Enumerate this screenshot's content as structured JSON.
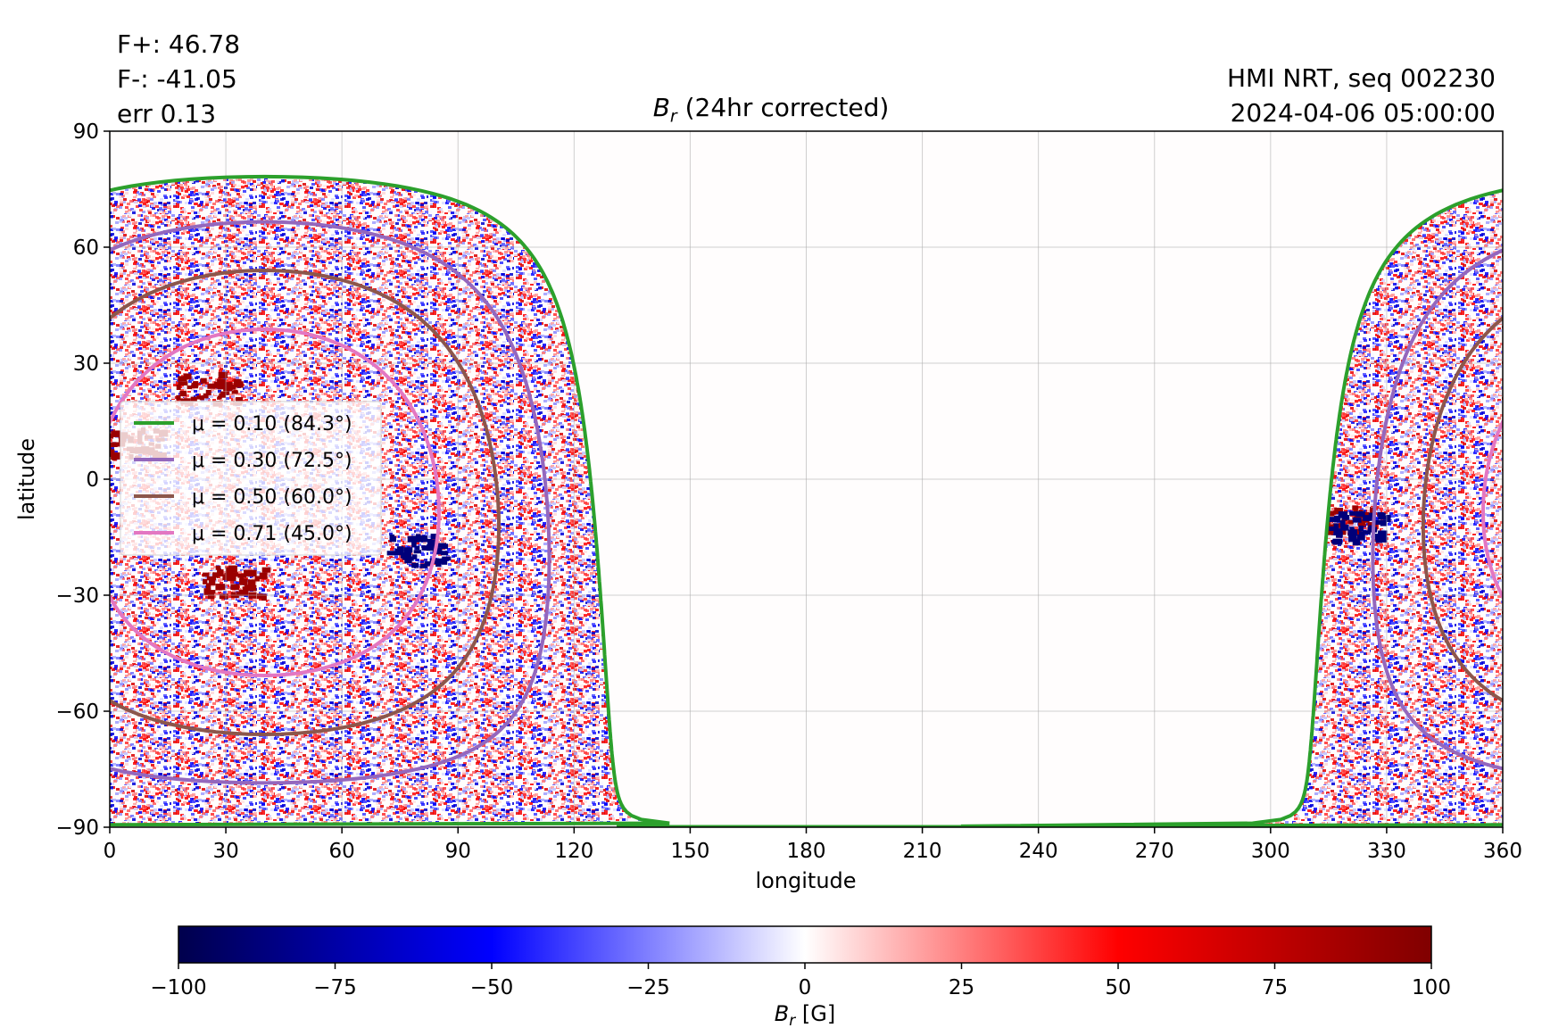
{
  "header": {
    "stats": [
      "F+: 46.78",
      "F-: -41.05",
      "err 0.13"
    ],
    "source_line1": "HMI NRT, seq 002230",
    "source_line2": "2024-04-06 05:00:00",
    "title_main": "B",
    "title_sub": "r",
    "title_rest": " (24hr corrected)"
  },
  "chart_data": {
    "type": "heatmap",
    "xlabel": "longitude",
    "ylabel": "latitude",
    "xlim": [
      0,
      360
    ],
    "ylim": [
      -90,
      90
    ],
    "xticks": [
      "0",
      "30",
      "60",
      "90",
      "120",
      "150",
      "180",
      "210",
      "240",
      "270",
      "300",
      "330",
      "360"
    ],
    "yticks": [
      "90",
      "60",
      "30",
      "0",
      "−30",
      "−60",
      "−90"
    ],
    "grid": true,
    "disk_center_longitude": 40,
    "disk_center_latitude": -6,
    "no_data_longitude_range": [
      131,
      312
    ],
    "contours": [
      {
        "label": "μ = 0.10 (84.3°)",
        "mu": 0.1,
        "angle_deg": 84.3,
        "color": "#2ca02c"
      },
      {
        "label": "μ = 0.30 (72.5°)",
        "mu": 0.3,
        "angle_deg": 72.5,
        "color": "#9467bd"
      },
      {
        "label": "μ = 0.50 (60.0°)",
        "mu": 0.5,
        "angle_deg": 60.0,
        "color": "#8c564b"
      },
      {
        "label": "μ = 0.71 (45.0°)",
        "mu": 0.71,
        "angle_deg": 45.0,
        "color": "#e377c2"
      }
    ],
    "legend_position": "center-left",
    "active_regions": [
      {
        "lon": 25,
        "lat": 24,
        "polarity": "positive"
      },
      {
        "lon": 32,
        "lat": -26,
        "polarity": "positive"
      },
      {
        "lon": 78,
        "lat": -18,
        "polarity": "negative"
      },
      {
        "lon": 5,
        "lat": 10,
        "polarity": "positive"
      },
      {
        "lon": 318,
        "lat": -10,
        "polarity": "positive"
      },
      {
        "lon": 322,
        "lat": -12,
        "polarity": "negative"
      }
    ],
    "colorbar": {
      "label_main": "B",
      "label_sub": "r",
      "label_rest": " [G]",
      "min": -100,
      "max": 100,
      "ticks": [
        "−100",
        "−75",
        "−50",
        "−25",
        "0",
        "25",
        "50",
        "75",
        "100"
      ],
      "colormap": "seismic",
      "colors": [
        "#00004c",
        "#0000ff",
        "#ffffff",
        "#ff0000",
        "#800000"
      ]
    }
  }
}
